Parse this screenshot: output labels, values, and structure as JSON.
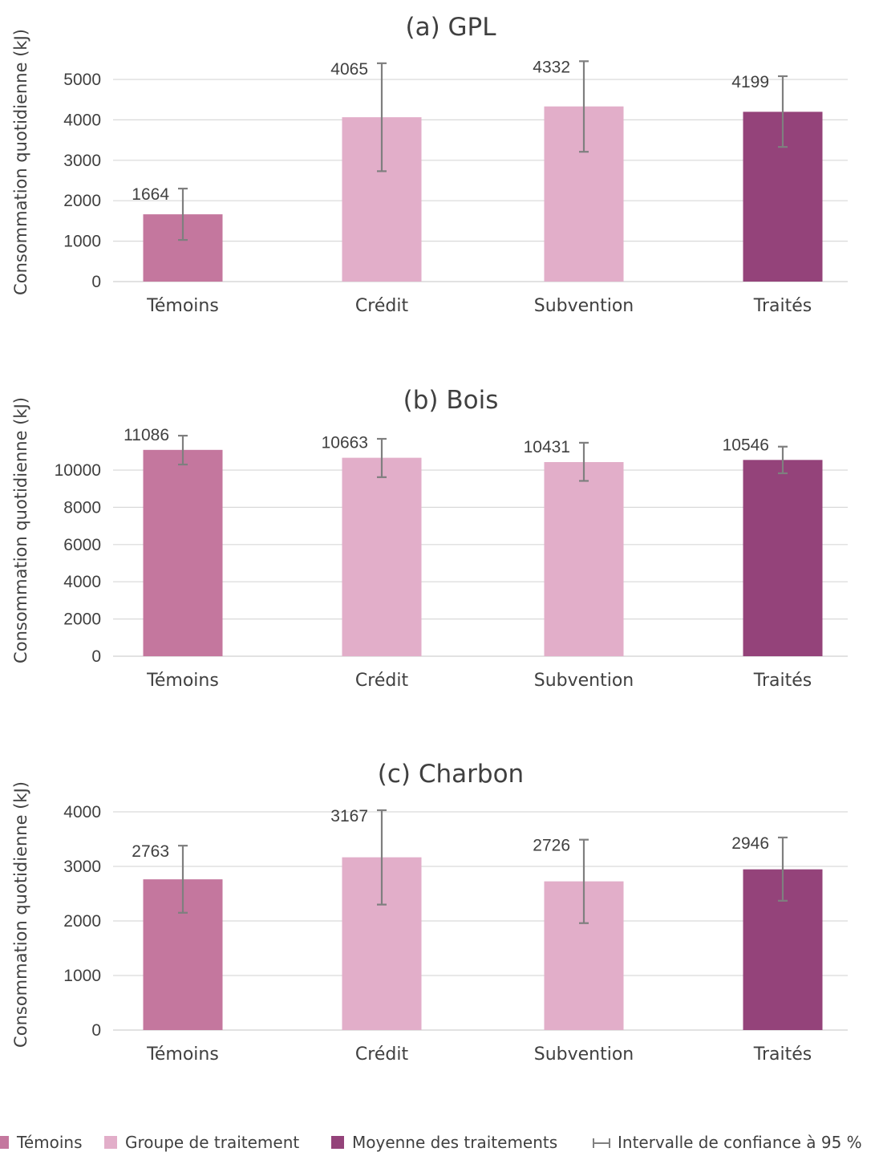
{
  "colors": {
    "temoins": "#c4779e",
    "groupe": "#e2aec9",
    "moyenne": "#94437a",
    "error_bar": "#7f7f7f",
    "grid": "#d9d9d9",
    "text": "#404040"
  },
  "legend": [
    {
      "label": "Témoins",
      "color": "#c4779e",
      "kind": "square"
    },
    {
      "label": "Groupe de traitement",
      "color": "#e2aec9",
      "kind": "square"
    },
    {
      "label": "Moyenne des traitements",
      "color": "#94437a",
      "kind": "square"
    },
    {
      "label": "Intervalle de confiance à 95 %",
      "color": "#7f7f7f",
      "kind": "errorbar"
    }
  ],
  "chart_data": [
    {
      "type": "bar",
      "title": "(a) GPL",
      "ylabel": "Consommation quotidienne (kJ)",
      "categories": [
        "Témoins",
        "Crédit",
        "Subvention",
        "Traités"
      ],
      "bar_colors": [
        "#c4779e",
        "#e2aec9",
        "#e2aec9",
        "#94437a"
      ],
      "values": [
        1664,
        4065,
        4332,
        4199
      ],
      "data_labels": [
        "1664",
        "4065",
        "4332",
        "4199"
      ],
      "ci_low": [
        1030,
        2730,
        3210,
        3330
      ],
      "ci_high": [
        2300,
        5400,
        5450,
        5080
      ],
      "ylim": [
        0,
        5000
      ],
      "yticks": [
        0,
        1000,
        2000,
        3000,
        4000,
        5000
      ],
      "ytick_labels": [
        "0",
        "1000",
        "2000",
        "3000",
        "4000",
        "5000"
      ],
      "grid": true
    },
    {
      "type": "bar",
      "title": "(b) Bois",
      "ylabel": "Consommation quotidienne (kJ)",
      "categories": [
        "Témoins",
        "Crédit",
        "Subvention",
        "Traités"
      ],
      "bar_colors": [
        "#c4779e",
        "#e2aec9",
        "#e2aec9",
        "#94437a"
      ],
      "values": [
        11086,
        10663,
        10431,
        10546
      ],
      "data_labels": [
        "11086",
        "10663",
        "10431",
        "10546"
      ],
      "ci_low": [
        10300,
        9620,
        9420,
        9830
      ],
      "ci_high": [
        11850,
        11680,
        11470,
        11260
      ],
      "ylim": [
        0,
        10000
      ],
      "yticks": [
        0,
        2000,
        4000,
        6000,
        8000,
        10000
      ],
      "ytick_labels": [
        "0",
        "2000",
        "4000",
        "6000",
        "8000",
        "10000"
      ],
      "grid": true
    },
    {
      "type": "bar",
      "title": "(c) Charbon",
      "ylabel": "Consommation quotidienne (kJ)",
      "categories": [
        "Témoins",
        "Crédit",
        "Subvention",
        "Traités"
      ],
      "bar_colors": [
        "#c4779e",
        "#e2aec9",
        "#e2aec9",
        "#94437a"
      ],
      "values": [
        2763,
        3167,
        2726,
        2946
      ],
      "data_labels": [
        "2763",
        "3167",
        "2726",
        "2946"
      ],
      "ci_low": [
        2150,
        2300,
        1960,
        2370
      ],
      "ci_high": [
        3380,
        4030,
        3490,
        3530
      ],
      "ylim": [
        0,
        4000
      ],
      "yticks": [
        0,
        1000,
        2000,
        3000,
        4000
      ],
      "ytick_labels": [
        "0",
        "1000",
        "2000",
        "3000",
        "4000"
      ],
      "grid": true
    }
  ]
}
